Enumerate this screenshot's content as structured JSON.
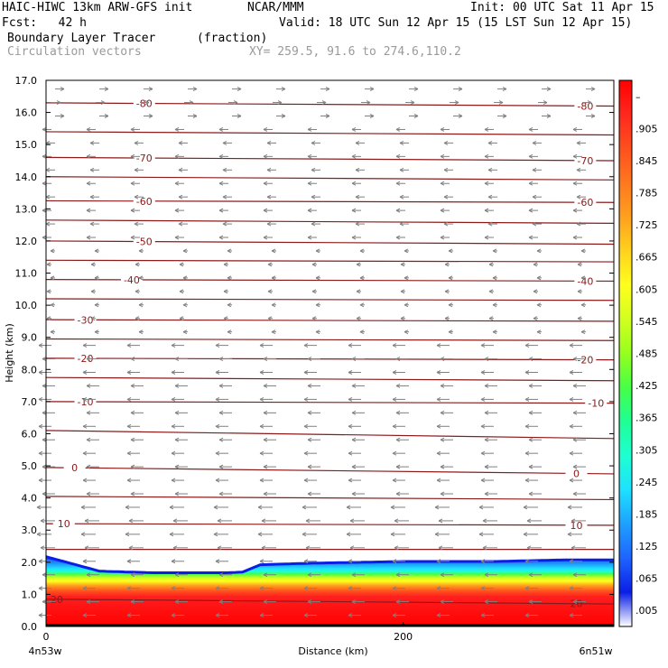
{
  "header": {
    "model": "HAIC-HIWC 13km ARW-GFS init",
    "org": "NCAR/MMM",
    "init": "Init: 00 UTC Sat 11 Apr 15",
    "fcst": "Fcst:   42 h",
    "valid": "Valid: 18 UTC Sun 12 Apr 15 (15 LST Sun 12 Apr 15)",
    "field1": "Boundary Layer Tracer",
    "field1_units": "(fraction)",
    "field2": "Circulation vectors",
    "xy": "XY= 259.5, 91.6 to 274.6,110.2"
  },
  "chart_data": {
    "type": "heatmap",
    "title": "Boundary Layer Tracer",
    "units": "(fraction)",
    "xlabel": "Distance (km)",
    "ylabel": "Height (km)",
    "xlim": [
      0,
      318
    ],
    "ylim": [
      0,
      17
    ],
    "x_ticks": [
      {
        "value": 0,
        "label": "0"
      },
      {
        "value": 200,
        "label": "200"
      }
    ],
    "x_end_labels": {
      "left": "4n53w",
      "right": "6n51w"
    },
    "y_ticks": [
      0.0,
      1.0,
      2.0,
      3.0,
      4.0,
      5.0,
      6.0,
      7.0,
      8.0,
      9.0,
      10.0,
      11.0,
      12.0,
      13.0,
      14.0,
      15.0,
      16.0,
      17.0
    ],
    "y_tick_labels": [
      "0.0",
      "1.0",
      "2.0",
      "3.0",
      "4.0",
      "5.0",
      "6.0",
      "7.0",
      "8.0",
      "9.0",
      "10.0",
      "11.0",
      "12.0",
      "13.0",
      "14.0",
      "15.0",
      "16.0",
      "17.0"
    ],
    "colorbar": {
      "labels": [
        ".005",
        ".065",
        ".125",
        ".185",
        ".245",
        ".305",
        ".365",
        ".425",
        ".485",
        ".545",
        ".605",
        ".665",
        ".725",
        ".785",
        ".845",
        ".905",
        "–"
      ],
      "colors": [
        "#ffffff",
        "#0a1ee6",
        "#1e64ff",
        "#1ea0ff",
        "#1ee1ff",
        "#1effd2",
        "#1eff96",
        "#46ff46",
        "#96ff1e",
        "#d2ff1e",
        "#ffff1e",
        "#ffd21e",
        "#ffa01e",
        "#ff781e",
        "#ff501e",
        "#ff281e",
        "#ff0000"
      ]
    },
    "boundary_layer_top_km": {
      "x": [
        0,
        10,
        30,
        60,
        100,
        110,
        120,
        150,
        200,
        250,
        290,
        318
      ],
      "y": [
        2.2,
        2.05,
        1.75,
        1.7,
        1.7,
        1.72,
        1.95,
        2.0,
        2.05,
        2.05,
        2.1,
        2.1
      ]
    },
    "temperature_contours": [
      {
        "label": "-80",
        "y0": 16.3,
        "y1": 16.2,
        "labels_at": [
          55,
          302
        ]
      },
      {
        "label": "",
        "y0": 15.4,
        "y1": 15.3
      },
      {
        "label": "-70",
        "y0": 14.6,
        "y1": 14.5,
        "labels_at": [
          55,
          302
        ]
      },
      {
        "label": "",
        "y0": 14.0,
        "y1": 13.9
      },
      {
        "label": "-60",
        "y0": 13.25,
        "y1": 13.2,
        "labels_at": [
          55,
          302
        ]
      },
      {
        "label": "",
        "y0": 12.65,
        "y1": 12.55
      },
      {
        "label": "-50",
        "y0": 12.0,
        "y1": 11.9,
        "labels_at": [
          55
        ]
      },
      {
        "label": "",
        "y0": 11.4,
        "y1": 11.35
      },
      {
        "label": "-40",
        "y0": 10.8,
        "y1": 10.75,
        "labels_at": [
          48,
          302
        ]
      },
      {
        "label": "",
        "y0": 10.2,
        "y1": 10.15
      },
      {
        "label": "-30",
        "y0": 9.55,
        "y1": 9.5,
        "labels_at": [
          22
        ]
      },
      {
        "label": "",
        "y0": 8.95,
        "y1": 8.9
      },
      {
        "label": "-20",
        "y0": 8.35,
        "y1": 8.3,
        "labels_at": [
          22,
          302
        ]
      },
      {
        "label": "",
        "y0": 7.75,
        "y1": 7.65
      },
      {
        "label": "-10",
        "y0": 7.0,
        "y1": 6.95,
        "labels_at": [
          22,
          308
        ]
      },
      {
        "label": "",
        "y0": 6.1,
        "y1": 5.85
      },
      {
        "label": "0",
        "y0": 4.95,
        "y1": 4.75,
        "labels_at": [
          16,
          297
        ]
      },
      {
        "label": "",
        "y0": 4.05,
        "y1": 3.95
      },
      {
        "label": "10",
        "y0": 3.2,
        "y1": 3.15,
        "labels_at": [
          10,
          297
        ]
      },
      {
        "label": "",
        "y0": 2.4,
        "y1": 2.4
      },
      {
        "label": "20",
        "y0": 0.85,
        "y1": 0.7,
        "labels_at": [
          6,
          297
        ]
      }
    ]
  }
}
